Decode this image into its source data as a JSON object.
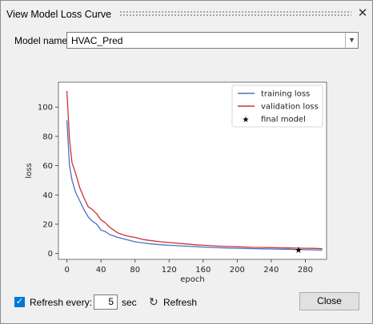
{
  "window": {
    "title": "View Model Loss Curve"
  },
  "model": {
    "label": "Model name:",
    "value": "HVAC_Pred"
  },
  "controls": {
    "refresh_checked": true,
    "refresh_label": "Refresh every:",
    "interval": "5",
    "unit": "sec",
    "refresh_button": "Refresh",
    "close_button": "Close"
  },
  "icons": {
    "close": "close-icon",
    "dropdown": "chevron-down-icon",
    "refresh": "refresh-icon",
    "check": "checkbox-checked-icon"
  },
  "chart_data": {
    "type": "line",
    "xlabel": "epoch",
    "ylabel": "loss",
    "xlim": [
      -10,
      305
    ],
    "ylim": [
      -4,
      117
    ],
    "xticks": [
      0,
      40,
      80,
      120,
      160,
      200,
      240,
      280
    ],
    "yticks": [
      0,
      20,
      40,
      60,
      80,
      100
    ],
    "legend_position": "top-right",
    "series": [
      {
        "name": "training loss",
        "color": "#4472c4",
        "x": [
          0,
          3,
          6,
          10,
          15,
          20,
          25,
          30,
          35,
          40,
          45,
          50,
          55,
          60,
          70,
          80,
          90,
          100,
          110,
          120,
          130,
          140,
          150,
          160,
          170,
          180,
          190,
          200,
          210,
          220,
          230,
          240,
          250,
          260,
          270,
          280,
          290,
          300
        ],
        "values": [
          91,
          60,
          50,
          42,
          36,
          30,
          25,
          22,
          20,
          16,
          15,
          13,
          12,
          11,
          9.5,
          8,
          7.2,
          6.5,
          6,
          5.6,
          5.3,
          5,
          4.7,
          4.4,
          4.1,
          3.9,
          3.7,
          3.6,
          3.4,
          3.3,
          3.2,
          3.1,
          3.0,
          2.9,
          2.7,
          2.6,
          2.5,
          2.4
        ]
      },
      {
        "name": "validation loss",
        "color": "#cc3333",
        "x": [
          0,
          3,
          6,
          10,
          15,
          20,
          25,
          30,
          35,
          40,
          45,
          50,
          55,
          60,
          70,
          80,
          90,
          100,
          110,
          120,
          130,
          140,
          150,
          160,
          170,
          180,
          190,
          200,
          210,
          220,
          230,
          240,
          250,
          260,
          270,
          280,
          290,
          300
        ],
        "values": [
          111,
          78,
          62,
          55,
          45,
          38,
          32,
          30,
          27,
          23,
          21,
          18,
          16,
          14,
          12,
          11,
          9.5,
          8.7,
          8,
          7.5,
          7,
          6.5,
          6,
          5.6,
          5.3,
          5,
          4.8,
          4.6,
          4.4,
          4.2,
          4.1,
          4.0,
          3.9,
          3.8,
          3.7,
          3.6,
          3.5,
          3.3
        ]
      },
      {
        "name": "final model",
        "color": "#000000",
        "marker": "star",
        "x": [
          272
        ],
        "values": [
          2.5
        ]
      }
    ]
  }
}
